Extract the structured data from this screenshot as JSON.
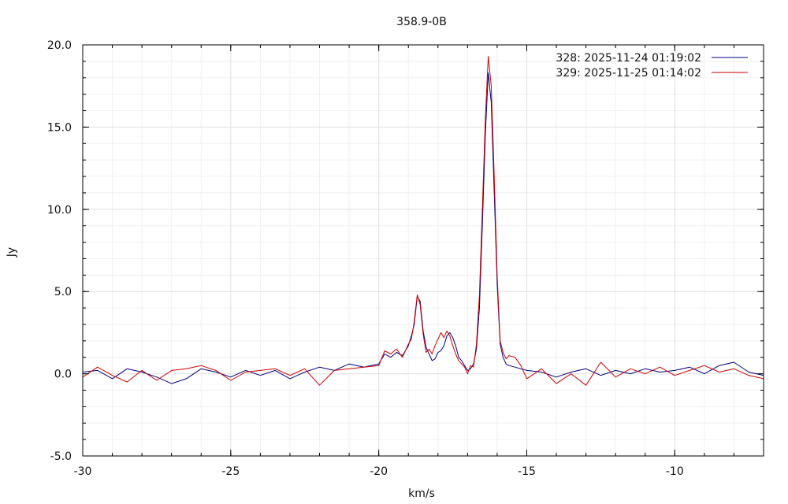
{
  "chart_data": {
    "type": "line",
    "title": "358.9-0B",
    "xlabel": "km/s",
    "ylabel": "Jy",
    "xlim": [
      -30,
      -7.0
    ],
    "ylim": [
      -5.0,
      20.0
    ],
    "xticks": [
      -30,
      -25,
      -20,
      -15,
      -10
    ],
    "xtick_labels": [
      "-30",
      "-25",
      "-20",
      "-15",
      "-10"
    ],
    "yticks": [
      -5.0,
      0.0,
      5.0,
      10.0,
      15.0,
      20.0
    ],
    "ytick_labels": [
      "-5.0",
      "0.0",
      "5.0",
      "10.0",
      "15.0",
      "20.0"
    ],
    "grid": true,
    "legend_position": "top-right",
    "colors": {
      "series_328": "#00007f",
      "series_329": "#cc0000",
      "grid": "#e2e2e2"
    },
    "series": [
      {
        "name": "328:   2025-11-24 01:19:02",
        "color": "#00007f",
        "x": [
          -30.0,
          -29.5,
          -29.0,
          -28.5,
          -28.0,
          -27.5,
          -27.0,
          -26.5,
          -26.0,
          -25.5,
          -25.0,
          -24.5,
          -24.0,
          -23.5,
          -23.0,
          -22.5,
          -22.0,
          -21.5,
          -21.0,
          -20.5,
          -20.0,
          -19.8,
          -19.6,
          -19.4,
          -19.2,
          -19.0,
          -18.9,
          -18.8,
          -18.7,
          -18.6,
          -18.5,
          -18.4,
          -18.3,
          -18.2,
          -18.1,
          -18.0,
          -17.9,
          -17.8,
          -17.7,
          -17.6,
          -17.5,
          -17.4,
          -17.3,
          -17.2,
          -17.1,
          -17.0,
          -16.9,
          -16.8,
          -16.7,
          -16.6,
          -16.5,
          -16.4,
          -16.3,
          -16.2,
          -16.1,
          -16.0,
          -15.9,
          -15.8,
          -15.7,
          -15.6,
          -15.4,
          -15.2,
          -15.0,
          -14.5,
          -14.0,
          -13.5,
          -13.0,
          -12.5,
          -12.0,
          -11.5,
          -11.0,
          -10.5,
          -10.0,
          -9.5,
          -9.0,
          -8.5,
          -8.0,
          -7.5,
          -7.0
        ],
        "y": [
          0.1,
          0.2,
          -0.3,
          0.3,
          0.1,
          -0.2,
          -0.6,
          -0.3,
          0.3,
          0.1,
          -0.2,
          0.2,
          -0.1,
          0.2,
          -0.3,
          0.1,
          0.4,
          0.2,
          0.6,
          0.4,
          0.6,
          1.2,
          1.0,
          1.3,
          1.1,
          1.7,
          2.3,
          3.0,
          4.7,
          4.4,
          2.6,
          1.6,
          1.2,
          0.8,
          0.9,
          1.3,
          1.4,
          1.7,
          2.3,
          2.5,
          2.2,
          1.7,
          1.0,
          0.8,
          0.5,
          0.2,
          0.3,
          0.6,
          1.5,
          4.0,
          9.0,
          14.5,
          18.3,
          16.5,
          11.0,
          5.5,
          1.8,
          1.0,
          0.6,
          0.5,
          0.4,
          0.3,
          0.2,
          0.1,
          -0.2,
          0.1,
          0.3,
          -0.1,
          0.2,
          0.0,
          0.3,
          0.1,
          0.2,
          0.4,
          0.0,
          0.5,
          0.7,
          0.1,
          -0.1
        ]
      },
      {
        "name": "329:   2025-11-25 01:14:02",
        "color": "#cc0000",
        "x": [
          -30.0,
          -29.5,
          -29.0,
          -28.5,
          -28.0,
          -27.5,
          -27.0,
          -26.5,
          -26.0,
          -25.5,
          -25.0,
          -24.5,
          -24.0,
          -23.5,
          -23.0,
          -22.5,
          -22.0,
          -21.5,
          -21.0,
          -20.5,
          -20.0,
          -19.8,
          -19.6,
          -19.4,
          -19.2,
          -19.0,
          -18.9,
          -18.8,
          -18.7,
          -18.6,
          -18.5,
          -18.4,
          -18.3,
          -18.2,
          -18.1,
          -18.0,
          -17.9,
          -17.8,
          -17.7,
          -17.6,
          -17.5,
          -17.4,
          -17.3,
          -17.2,
          -17.1,
          -17.0,
          -16.9,
          -16.8,
          -16.7,
          -16.6,
          -16.5,
          -16.4,
          -16.3,
          -16.2,
          -16.1,
          -16.0,
          -15.9,
          -15.8,
          -15.7,
          -15.6,
          -15.4,
          -15.2,
          -15.0,
          -14.5,
          -14.0,
          -13.5,
          -13.0,
          -12.5,
          -12.0,
          -11.5,
          -11.0,
          -10.5,
          -10.0,
          -9.5,
          -9.0,
          -8.5,
          -8.0,
          -7.5,
          -7.0
        ],
        "y": [
          -0.2,
          0.4,
          -0.1,
          -0.5,
          0.2,
          -0.4,
          0.2,
          0.3,
          0.5,
          0.2,
          -0.4,
          0.1,
          0.2,
          0.3,
          -0.1,
          0.3,
          -0.7,
          0.2,
          0.3,
          0.4,
          0.5,
          1.4,
          1.2,
          1.5,
          1.0,
          1.8,
          2.1,
          3.2,
          4.8,
          4.2,
          2.4,
          1.3,
          1.5,
          1.2,
          1.7,
          2.1,
          2.5,
          2.2,
          2.6,
          2.3,
          1.7,
          1.2,
          0.8,
          0.6,
          0.4,
          0.0,
          0.5,
          0.4,
          1.8,
          4.8,
          10.0,
          15.5,
          19.3,
          17.5,
          12.0,
          6.0,
          2.0,
          1.3,
          0.9,
          1.1,
          1.0,
          0.5,
          -0.3,
          0.3,
          -0.6,
          0.0,
          -0.7,
          0.7,
          -0.2,
          0.3,
          0.0,
          0.4,
          -0.1,
          0.2,
          0.5,
          0.1,
          0.3,
          -0.1,
          -0.3
        ]
      }
    ]
  }
}
